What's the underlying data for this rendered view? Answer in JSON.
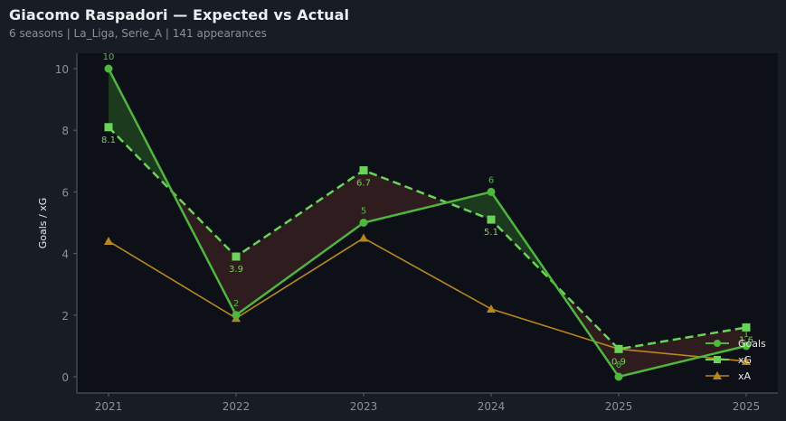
{
  "header": {
    "title": "Giacomo Raspadori — Expected vs Actual",
    "subtitle": "6 seasons | La_Liga, Serie_A | 141 appearances"
  },
  "colors": {
    "background": "#181c24",
    "plot_background": "#0d1017",
    "goals": "#4fb640",
    "xg": "#6bd35a",
    "xa": "#b8861f",
    "over_fill": "#1c3a1e",
    "under_fill": "#2e1c1e",
    "axis": "#5b606b"
  },
  "chart_data": {
    "type": "line",
    "title": "Giacomo Raspadori — Expected vs Actual",
    "subtitle": "6 seasons | La_Liga, Serie_A | 141 appearances",
    "xlabel": "",
    "ylabel": "Goals / xG",
    "categories": [
      "2021",
      "2022",
      "2023",
      "2024",
      "2025",
      "2025"
    ],
    "ylim": [
      -0.5,
      10.5
    ],
    "yticks": [
      0,
      2,
      4,
      6,
      8,
      10
    ],
    "grid": false,
    "legend_position": "lower right",
    "series": [
      {
        "name": "Goals",
        "values": [
          10,
          2,
          5,
          6,
          0,
          1
        ],
        "marker": "circle",
        "line": "solid",
        "labels": [
          "10",
          "2",
          "5",
          "6",
          "0",
          "1"
        ]
      },
      {
        "name": "xG",
        "values": [
          8.1,
          3.9,
          6.7,
          5.1,
          0.9,
          1.6
        ],
        "marker": "square",
        "line": "dashed",
        "labels": [
          "8.1",
          "3.9",
          "6.7",
          "5.1",
          "0.9",
          "1.6"
        ]
      },
      {
        "name": "xA",
        "values": [
          4.4,
          1.9,
          4.5,
          2.2,
          0.9,
          0.5
        ],
        "marker": "triangle",
        "line": "solid"
      }
    ],
    "fill_between": "Goals vs xG (green where Goals > xG, red where Goals < xG)"
  },
  "legend": {
    "items": [
      {
        "label": "Goals"
      },
      {
        "label": "xG"
      },
      {
        "label": "xA"
      }
    ]
  }
}
